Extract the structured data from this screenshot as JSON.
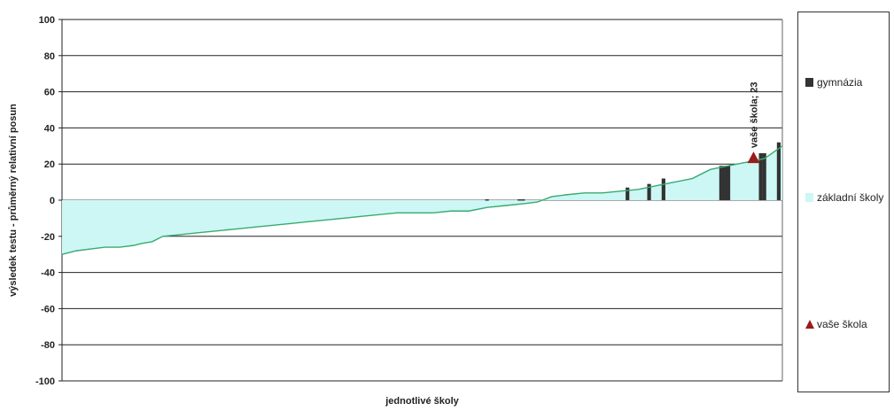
{
  "chart_data": {
    "type": "bar",
    "xlabel": "jednotlivé školy",
    "ylabel": "výsledek testu - průměrný relativní posun",
    "ylim": [
      -100,
      100
    ],
    "yticks": [
      100,
      80,
      60,
      40,
      20,
      0,
      -20,
      -40,
      -60,
      -80,
      -100
    ],
    "grid": true,
    "series": [
      {
        "name": "gymnázia",
        "type": "bar",
        "color": "#333333",
        "points": [
          {
            "x": 118,
            "y": 0.5
          },
          {
            "x": 127,
            "y": 0.5
          },
          {
            "x": 128,
            "y": 0.5
          },
          {
            "x": 157,
            "y": 7
          },
          {
            "x": 163,
            "y": 9
          },
          {
            "x": 167,
            "y": 12
          },
          {
            "x": 183,
            "y": 19
          },
          {
            "x": 184,
            "y": 19
          },
          {
            "x": 185,
            "y": 19
          },
          {
            "x": 194,
            "y": 26
          },
          {
            "x": 195,
            "y": 26
          },
          {
            "x": 199,
            "y": 32
          }
        ]
      },
      {
        "name": "základní školy",
        "type": "area",
        "color": "#ccf7f5",
        "line_color": "#3aaa70",
        "x": [
          0,
          4,
          8,
          12,
          16,
          20,
          22,
          25,
          28,
          33,
          38,
          43,
          48,
          53,
          58,
          63,
          68,
          73,
          78,
          83,
          88,
          93,
          98,
          103,
          108,
          113,
          118,
          123,
          128,
          132,
          136,
          140,
          145,
          150,
          155,
          160,
          165,
          170,
          175,
          180,
          185,
          190,
          195,
          200
        ],
        "y": [
          -30,
          -28,
          -27,
          -26,
          -26,
          -25,
          -24,
          -23,
          -20,
          -19,
          -18,
          -17,
          -16,
          -15,
          -14,
          -13,
          -12,
          -11,
          -10,
          -9,
          -8,
          -7,
          -7,
          -7,
          -6,
          -6,
          -4,
          -3,
          -2,
          -1,
          2,
          3,
          4,
          4,
          5,
          6,
          8,
          10,
          12,
          17,
          19,
          21,
          23,
          30
        ]
      },
      {
        "name": "vaše škola",
        "type": "scatter",
        "color": "#9b1b1b",
        "points": [
          {
            "x": 192,
            "y": 23
          }
        ]
      }
    ],
    "annotations": [
      {
        "x": 192,
        "y": 23,
        "text": "vaše škola; 23"
      }
    ],
    "legend": {
      "position": "right",
      "entries": [
        "gymnázia",
        "základní školy",
        "vaše škola"
      ]
    }
  }
}
